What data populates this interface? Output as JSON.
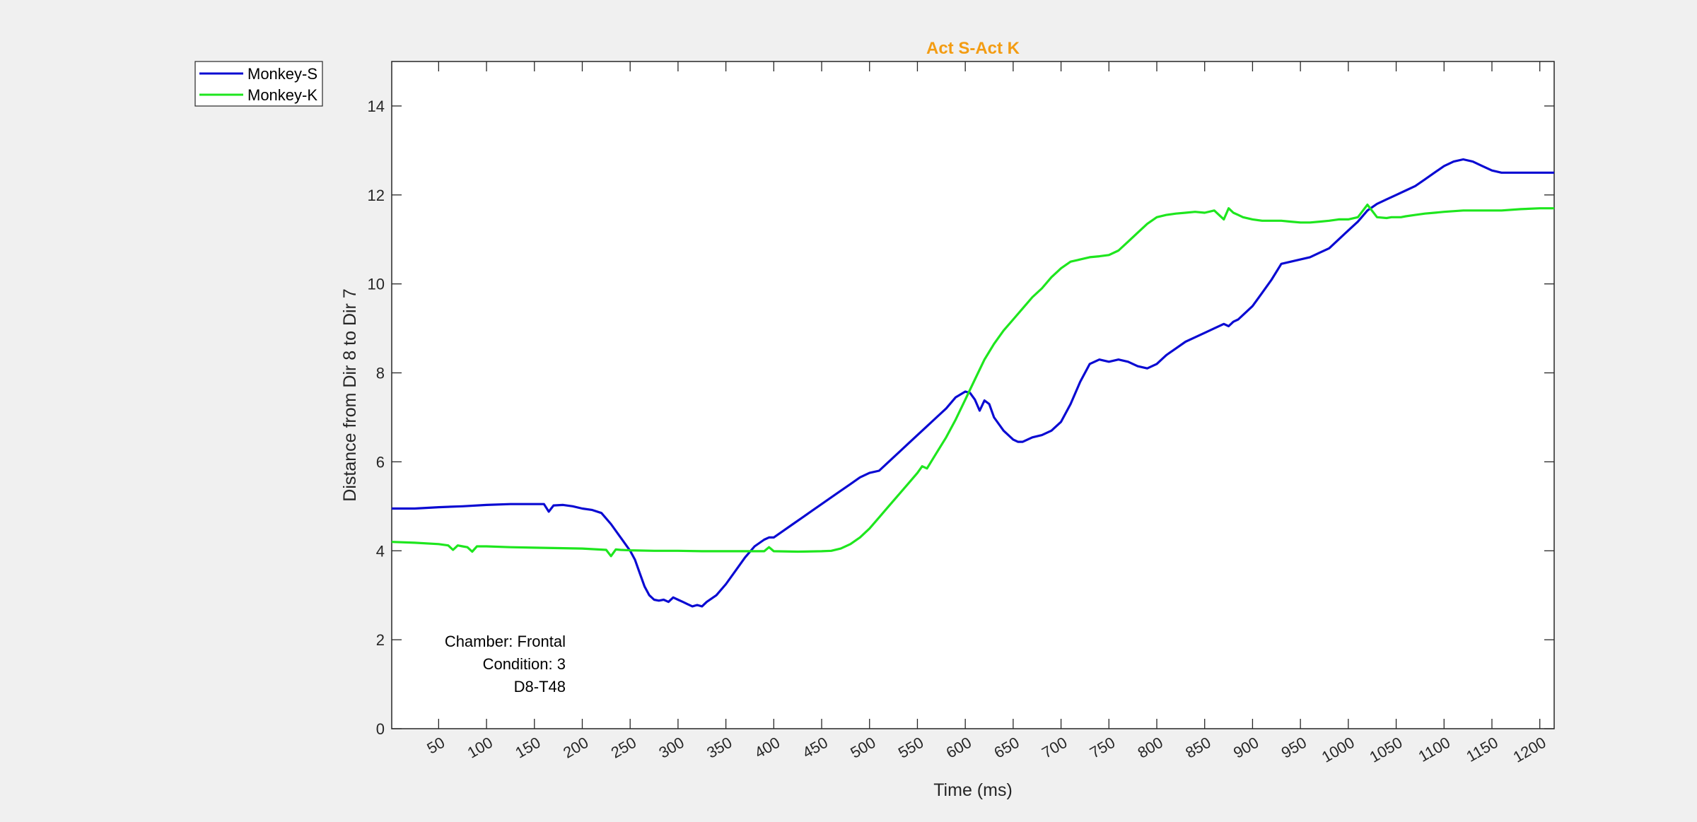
{
  "chart_data": {
    "type": "line",
    "title": "Act S-Act K",
    "title_color": "#f39c12",
    "xlabel": "Time (ms)",
    "ylabel": "Distance from Dir 8 to Dir 7",
    "xlim": [
      1,
      1215
    ],
    "ylim": [
      0,
      15
    ],
    "xticks": [
      50,
      100,
      150,
      200,
      250,
      300,
      350,
      400,
      450,
      500,
      550,
      600,
      650,
      700,
      750,
      800,
      850,
      900,
      950,
      1000,
      1050,
      1100,
      1150,
      1200
    ],
    "yticks": [
      0,
      2,
      4,
      6,
      8,
      10,
      12,
      14
    ],
    "grid": false,
    "legend_position": "outside-top-left",
    "annotation": [
      "Chamber: Frontal",
      "Condition: 3",
      "D8-T48"
    ],
    "series": [
      {
        "name": "Monkey-S",
        "color": "#0a0ad2",
        "x": [
          1,
          25,
          50,
          75,
          100,
          125,
          150,
          160,
          165,
          170,
          180,
          190,
          200,
          210,
          220,
          230,
          240,
          250,
          255,
          260,
          265,
          270,
          275,
          280,
          285,
          290,
          295,
          300,
          305,
          310,
          315,
          320,
          325,
          330,
          340,
          350,
          360,
          370,
          380,
          390,
          395,
          400,
          410,
          420,
          430,
          440,
          450,
          460,
          470,
          480,
          490,
          500,
          510,
          520,
          530,
          540,
          550,
          560,
          570,
          580,
          590,
          600,
          605,
          610,
          615,
          620,
          625,
          630,
          640,
          650,
          655,
          660,
          665,
          670,
          680,
          690,
          700,
          710,
          720,
          730,
          740,
          750,
          760,
          770,
          780,
          790,
          800,
          810,
          820,
          830,
          840,
          850,
          860,
          870,
          875,
          880,
          885,
          890,
          900,
          910,
          920,
          930,
          940,
          950,
          960,
          970,
          980,
          990,
          1000,
          1010,
          1020,
          1030,
          1040,
          1050,
          1060,
          1070,
          1080,
          1090,
          1100,
          1110,
          1120,
          1130,
          1140,
          1150,
          1160,
          1170,
          1180,
          1190,
          1200,
          1215
        ],
        "y": [
          4.95,
          4.95,
          4.98,
          5.0,
          5.03,
          5.05,
          5.05,
          5.05,
          4.88,
          5.02,
          5.03,
          5.0,
          4.95,
          4.92,
          4.85,
          4.6,
          4.3,
          4.0,
          3.8,
          3.5,
          3.2,
          3.0,
          2.9,
          2.88,
          2.9,
          2.85,
          2.95,
          2.9,
          2.85,
          2.8,
          2.75,
          2.78,
          2.75,
          2.85,
          3.0,
          3.25,
          3.55,
          3.85,
          4.1,
          4.25,
          4.3,
          4.3,
          4.45,
          4.6,
          4.75,
          4.9,
          5.05,
          5.2,
          5.35,
          5.5,
          5.65,
          5.75,
          5.8,
          6.0,
          6.2,
          6.4,
          6.6,
          6.8,
          7.0,
          7.2,
          7.45,
          7.58,
          7.55,
          7.4,
          7.15,
          7.38,
          7.3,
          7.0,
          6.7,
          6.5,
          6.45,
          6.45,
          6.5,
          6.55,
          6.6,
          6.7,
          6.9,
          7.3,
          7.8,
          8.2,
          8.3,
          8.25,
          8.3,
          8.25,
          8.15,
          8.1,
          8.2,
          8.4,
          8.55,
          8.7,
          8.8,
          8.9,
          9.0,
          9.1,
          9.05,
          9.15,
          9.2,
          9.3,
          9.5,
          9.8,
          10.1,
          10.45,
          10.5,
          10.55,
          10.6,
          10.7,
          10.8,
          11.0,
          11.2,
          11.4,
          11.65,
          11.8,
          11.9,
          12.0,
          12.1,
          12.2,
          12.35,
          12.5,
          12.65,
          12.75,
          12.8,
          12.75,
          12.65,
          12.55,
          12.5,
          12.5,
          12.5,
          12.5,
          12.5,
          12.5
        ]
      },
      {
        "name": "Monkey-K",
        "color": "#1ee61e",
        "x": [
          1,
          25,
          50,
          60,
          65,
          70,
          75,
          80,
          85,
          90,
          100,
          125,
          150,
          175,
          200,
          225,
          230,
          235,
          240,
          250,
          275,
          300,
          325,
          350,
          375,
          390,
          395,
          400,
          425,
          450,
          460,
          470,
          480,
          490,
          500,
          510,
          520,
          530,
          540,
          550,
          555,
          560,
          570,
          580,
          590,
          600,
          610,
          620,
          630,
          640,
          650,
          660,
          670,
          680,
          690,
          700,
          710,
          720,
          730,
          740,
          750,
          760,
          770,
          780,
          790,
          800,
          810,
          820,
          830,
          840,
          850,
          860,
          870,
          875,
          880,
          885,
          890,
          900,
          910,
          920,
          930,
          940,
          950,
          960,
          970,
          980,
          990,
          1000,
          1010,
          1020,
          1030,
          1040,
          1045,
          1050,
          1055,
          1060,
          1070,
          1080,
          1090,
          1100,
          1120,
          1140,
          1160,
          1180,
          1200,
          1215
        ],
        "y": [
          4.2,
          4.18,
          4.15,
          4.12,
          4.02,
          4.12,
          4.1,
          4.08,
          3.98,
          4.1,
          4.1,
          4.08,
          4.07,
          4.06,
          4.05,
          4.02,
          3.88,
          4.03,
          4.02,
          4.01,
          4.0,
          4.0,
          3.99,
          3.99,
          3.99,
          3.99,
          4.08,
          3.99,
          3.98,
          3.99,
          4.0,
          4.05,
          4.15,
          4.3,
          4.5,
          4.75,
          5.0,
          5.25,
          5.5,
          5.75,
          5.9,
          5.85,
          6.2,
          6.55,
          6.95,
          7.4,
          7.85,
          8.3,
          8.65,
          8.95,
          9.2,
          9.45,
          9.7,
          9.9,
          10.15,
          10.35,
          10.5,
          10.55,
          10.6,
          10.62,
          10.65,
          10.75,
          10.95,
          11.15,
          11.35,
          11.5,
          11.55,
          11.58,
          11.6,
          11.62,
          11.6,
          11.65,
          11.45,
          11.7,
          11.6,
          11.55,
          11.5,
          11.45,
          11.42,
          11.42,
          11.42,
          11.4,
          11.38,
          11.38,
          11.4,
          11.42,
          11.45,
          11.45,
          11.5,
          11.78,
          11.5,
          11.48,
          11.5,
          11.5,
          11.5,
          11.52,
          11.55,
          11.58,
          11.6,
          11.62,
          11.65,
          11.65,
          11.65,
          11.68,
          11.7,
          11.7
        ]
      }
    ]
  }
}
